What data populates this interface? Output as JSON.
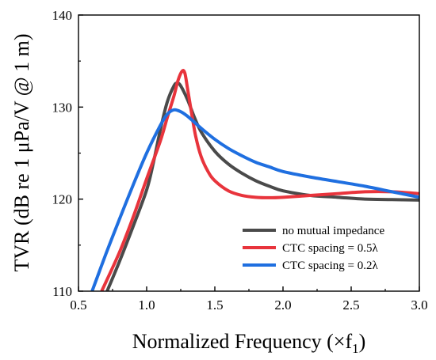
{
  "chart_data": {
    "type": "line",
    "title": "",
    "xlabel": "Normalized Frequency (×f",
    "xlabel_sub": "1",
    "xlabel_close": ")",
    "ylabel": "TVR (dB re 1 μPa/V @ 1 m)",
    "xlim": [
      0.5,
      3.0
    ],
    "ylim": [
      110,
      140
    ],
    "xticks": [
      "0.5",
      "1.0",
      "1.5",
      "2.0",
      "2.5",
      "3.0"
    ],
    "yticks": [
      "110",
      "120",
      "130",
      "140"
    ],
    "grid": false,
    "legend_position": "bottom-right",
    "series": [
      {
        "name": "no mutual impedance",
        "color": "#4a4a4a",
        "x": [
          0.71,
          0.8,
          0.9,
          1.0,
          1.05,
          1.1,
          1.15,
          1.2,
          1.225,
          1.25,
          1.3,
          1.35,
          1.4,
          1.5,
          1.6,
          1.7,
          1.8,
          1.9,
          2.0,
          2.2,
          2.4,
          2.6,
          2.8,
          3.0
        ],
        "y": [
          110.0,
          113.2,
          117.0,
          121.0,
          124.0,
          127.5,
          130.5,
          132.3,
          132.6,
          132.3,
          130.8,
          128.9,
          127.3,
          125.2,
          123.8,
          122.8,
          122.0,
          121.4,
          120.9,
          120.4,
          120.2,
          120.0,
          119.95,
          119.9
        ]
      },
      {
        "name": "CTC spacing = 0.5λ",
        "color": "#e8343c",
        "x": [
          0.67,
          0.8,
          0.9,
          1.0,
          1.1,
          1.15,
          1.2,
          1.23,
          1.26,
          1.28,
          1.3,
          1.33,
          1.36,
          1.4,
          1.45,
          1.5,
          1.6,
          1.7,
          1.8,
          1.9,
          2.0,
          2.2,
          2.4,
          2.6,
          2.8,
          3.0
        ],
        "y": [
          110.0,
          114.2,
          118.0,
          122.2,
          126.3,
          128.8,
          131.2,
          132.9,
          133.9,
          133.7,
          132.0,
          129.3,
          126.8,
          124.6,
          123.0,
          122.0,
          120.9,
          120.4,
          120.2,
          120.15,
          120.2,
          120.4,
          120.6,
          120.8,
          120.8,
          120.6
        ]
      },
      {
        "name": "CTC spacing = 0.2λ",
        "color": "#1f6fe0",
        "x": [
          0.6,
          0.7,
          0.8,
          0.9,
          1.0,
          1.1,
          1.15,
          1.2,
          1.25,
          1.3,
          1.4,
          1.5,
          1.6,
          1.7,
          1.8,
          1.9,
          2.0,
          2.2,
          2.4,
          2.6,
          2.8,
          3.0
        ],
        "y": [
          110.0,
          114.0,
          117.8,
          121.5,
          125.0,
          128.0,
          129.2,
          129.7,
          129.5,
          129.0,
          127.7,
          126.5,
          125.5,
          124.7,
          124.0,
          123.5,
          123.0,
          122.4,
          121.9,
          121.4,
          120.8,
          120.2
        ]
      }
    ]
  }
}
